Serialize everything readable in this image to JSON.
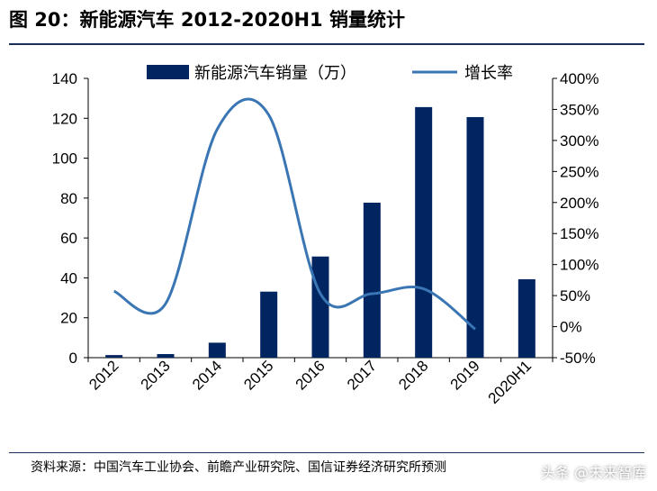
{
  "title": "图 20：新能源汽车 2012-2020H1 销量统计",
  "source": "资料来源：中国汽车工业协会、前瞻产业研究院、国信证券经济研究所预测",
  "watermark": "头条 @未来智库",
  "colors": {
    "bar": "#002561",
    "line": "#3a76b4",
    "rule": "#1a2e5a"
  },
  "chart_data": {
    "type": "bar",
    "categories": [
      "2012",
      "2013",
      "2014",
      "2015",
      "2016",
      "2017",
      "2018",
      "2019",
      "2020H1"
    ],
    "series": [
      {
        "name": "新能源汽车销量（万）",
        "type": "bar",
        "axis": "left",
        "values": [
          1.3,
          1.8,
          7.5,
          33.1,
          50.7,
          77.7,
          125.6,
          120.6,
          39.3
        ]
      },
      {
        "name": "增长率",
        "type": "line",
        "axis": "right",
        "smooth": true,
        "values": [
          57,
          37,
          318,
          341,
          53,
          53,
          61,
          -4,
          null
        ]
      }
    ],
    "y_left": {
      "min": 0,
      "max": 140,
      "ticks": [
        0,
        20,
        40,
        60,
        80,
        100,
        120,
        140
      ]
    },
    "y_right": {
      "min": -50,
      "max": 400,
      "ticks": [
        "-50%",
        "0%",
        "50%",
        "100%",
        "150%",
        "200%",
        "250%",
        "300%",
        "350%",
        "400%"
      ]
    },
    "legend": "top-center"
  }
}
